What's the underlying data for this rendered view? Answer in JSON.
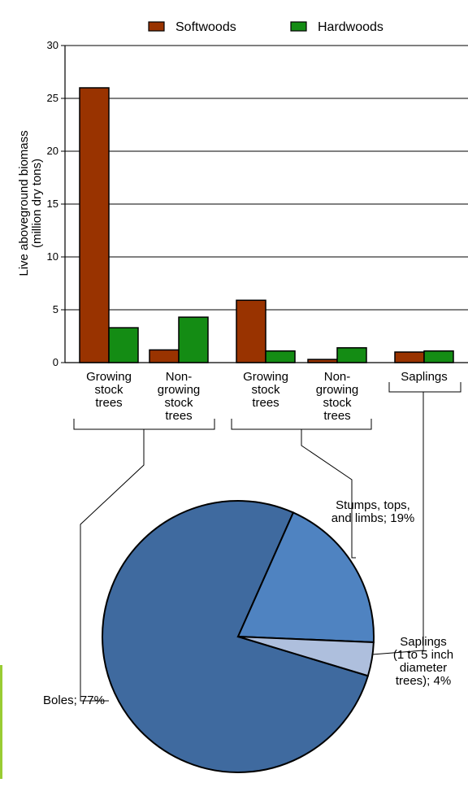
{
  "colors": {
    "softwoods": "#993300",
    "hardwoods": "#148C14",
    "pie_boles": "#3F6A9F",
    "pie_stumps": "#4F83C1",
    "pie_saplings": "#AEBFDD",
    "side_bar": "#99CC33"
  },
  "chart_data": [
    {
      "type": "bar",
      "title": "",
      "xlabel": "",
      "ylabel": "Live aboveground biomass\n(million dry tons)",
      "ylabel_lines": [
        "Live aboveground biomass",
        "(million dry tons)"
      ],
      "ylim": [
        0,
        30
      ],
      "yticks": [
        "0",
        "5",
        "10",
        "15",
        "20",
        "25",
        "30"
      ],
      "grid": true,
      "legend": "top",
      "categories": [
        [
          "Growing",
          "stock",
          "trees"
        ],
        [
          "Non-",
          "growing",
          "stock",
          "trees"
        ],
        [
          "Growing",
          "stock",
          "trees"
        ],
        [
          "Non-",
          "growing",
          "stock",
          "trees"
        ],
        [
          "Saplings"
        ]
      ],
      "series": [
        {
          "name": "Softwoods",
          "values": [
            26.0,
            1.2,
            5.9,
            0.3,
            1.0
          ]
        },
        {
          "name": "Hardwoods",
          "values": [
            3.3,
            4.3,
            1.1,
            1.4,
            1.1
          ]
        }
      ]
    },
    {
      "type": "pie",
      "title": "",
      "slices": [
        {
          "label": "Boles; 77%",
          "value": 77
        },
        {
          "label": "Stumps, tops, and limbs; 19%",
          "value": 19,
          "label_lines": [
            "Stumps, tops,",
            "and limbs; 19%"
          ]
        },
        {
          "label": "Saplings (1 to 5 inch diameter trees); 4%",
          "value": 4,
          "label_lines": [
            "Saplings",
            "(1 to 5 inch",
            "diameter",
            "trees); 4%"
          ]
        }
      ]
    }
  ]
}
